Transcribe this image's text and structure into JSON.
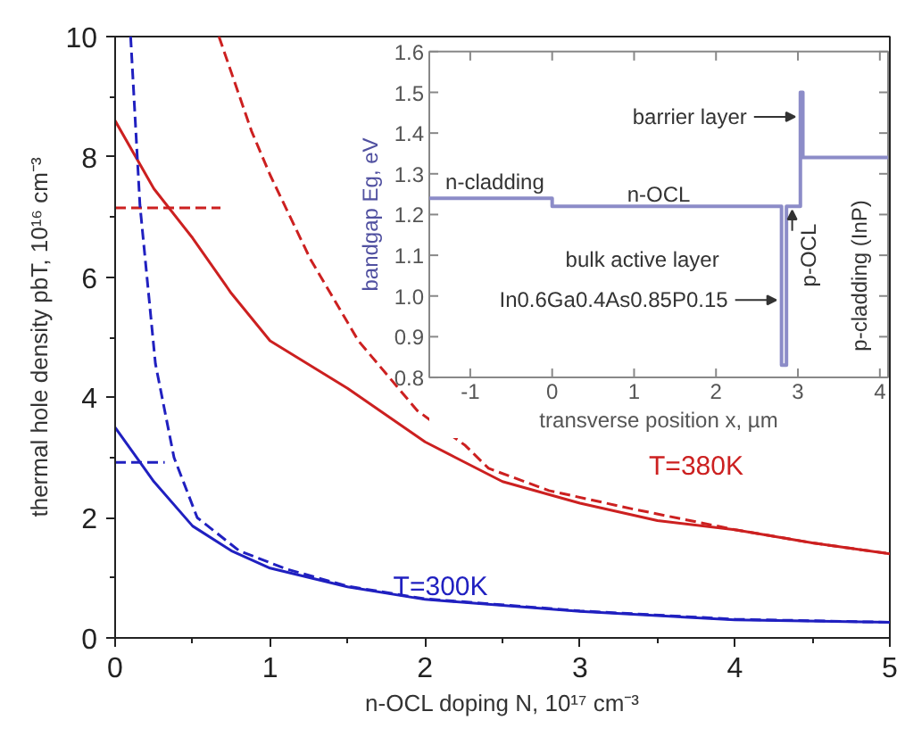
{
  "chart_data": [
    {
      "type": "line",
      "xlabel": "n-OCL doping N, 10¹⁷ cm⁻³",
      "ylabel": "thermal hole density pbT, 10¹⁶ cm⁻³",
      "xlim": [
        0,
        5
      ],
      "ylim": [
        0,
        10
      ],
      "xticks": [
        0,
        1,
        2,
        3,
        4,
        5
      ],
      "yticks": [
        0,
        2,
        4,
        6,
        8,
        10
      ],
      "grid": false,
      "series": [
        {
          "name": "T=380K",
          "color": "#cc2020",
          "line_style": "solid",
          "x": [
            0,
            0.25,
            0.5,
            0.75,
            1,
            1.5,
            2,
            2.5,
            3,
            3.5,
            4,
            4.5,
            5
          ],
          "values": [
            8.6,
            7.47,
            6.65,
            5.73,
            4.94,
            4.15,
            3.26,
            2.6,
            2.24,
            1.95,
            1.8,
            1.58,
            1.4
          ]
        },
        {
          "color": "#cc2020",
          "line_style": "dashed",
          "x": [
            0.67,
            0.88,
            1.0,
            1.26,
            1.57,
            1.95,
            2.26,
            2.41,
            2.8,
            3.33,
            4,
            4.5,
            5
          ],
          "values": [
            10,
            8.43,
            7.7,
            6.3,
            4.94,
            3.78,
            3.2,
            2.82,
            2.45,
            2.15,
            1.8,
            1.58,
            1.4
          ]
        },
        {
          "color": "#cc2020",
          "line_style": "dashed",
          "x": [
            0,
            0.68
          ],
          "values": [
            7.15,
            7.15
          ]
        },
        {
          "name": "T=300K",
          "color": "#2020c0",
          "line_style": "solid",
          "x": [
            0,
            0.25,
            0.5,
            0.75,
            1,
            1.5,
            2,
            3,
            4,
            5
          ],
          "values": [
            3.5,
            2.6,
            1.86,
            1.45,
            1.16,
            0.85,
            0.64,
            0.44,
            0.3,
            0.26
          ]
        },
        {
          "color": "#2020c0",
          "line_style": "dashed",
          "x": [
            0.1,
            0.16,
            0.26,
            0.38,
            0.53,
            0.8,
            1.1,
            1.5,
            2,
            3,
            4,
            5
          ],
          "values": [
            10,
            7.2,
            4.56,
            3.0,
            2.0,
            1.45,
            1.15,
            0.86,
            0.65,
            0.45,
            0.31,
            0.26
          ]
        },
        {
          "color": "#2020c0",
          "line_style": "dashed",
          "x": [
            0,
            0.32
          ],
          "values": [
            2.92,
            2.92
          ]
        }
      ]
    },
    {
      "type": "line",
      "xlabel": "transverse position x, µm",
      "ylabel": "bandgap Eg, eV",
      "xlim": [
        -1.5,
        4.1
      ],
      "ylim": [
        0.8,
        1.6
      ],
      "xticks": [
        -1,
        0,
        1,
        2,
        3,
        4
      ],
      "yticks": [
        0.8,
        0.9,
        {
          "value": 1.0,
          "label": "1.0"
        },
        1.1,
        1.2,
        1.3,
        1.4,
        1.5,
        1.6
      ],
      "series": [
        {
          "color": "#8c8cc8",
          "x": [
            -1.5,
            0,
            0,
            2.8,
            2.8,
            2.86,
            2.86,
            3.03,
            3.03,
            3.06,
            3.06,
            4.1
          ],
          "values": [
            1.24,
            1.24,
            1.22,
            1.22,
            0.83,
            0.83,
            1.22,
            1.22,
            1.5,
            1.5,
            1.34,
            1.34
          ]
        }
      ],
      "annotations": [
        "n-cladding",
        "n-OCL",
        {
          "text": "barrier layer",
          "x": 3.03,
          "y": 1.44
        },
        "bulk active layer",
        {
          "text": "In0.6Ga0.4As0.85P0.15",
          "x": 2.8,
          "y": 0.99
        },
        "p-OCL",
        "p-cladding (InP)"
      ]
    }
  ]
}
